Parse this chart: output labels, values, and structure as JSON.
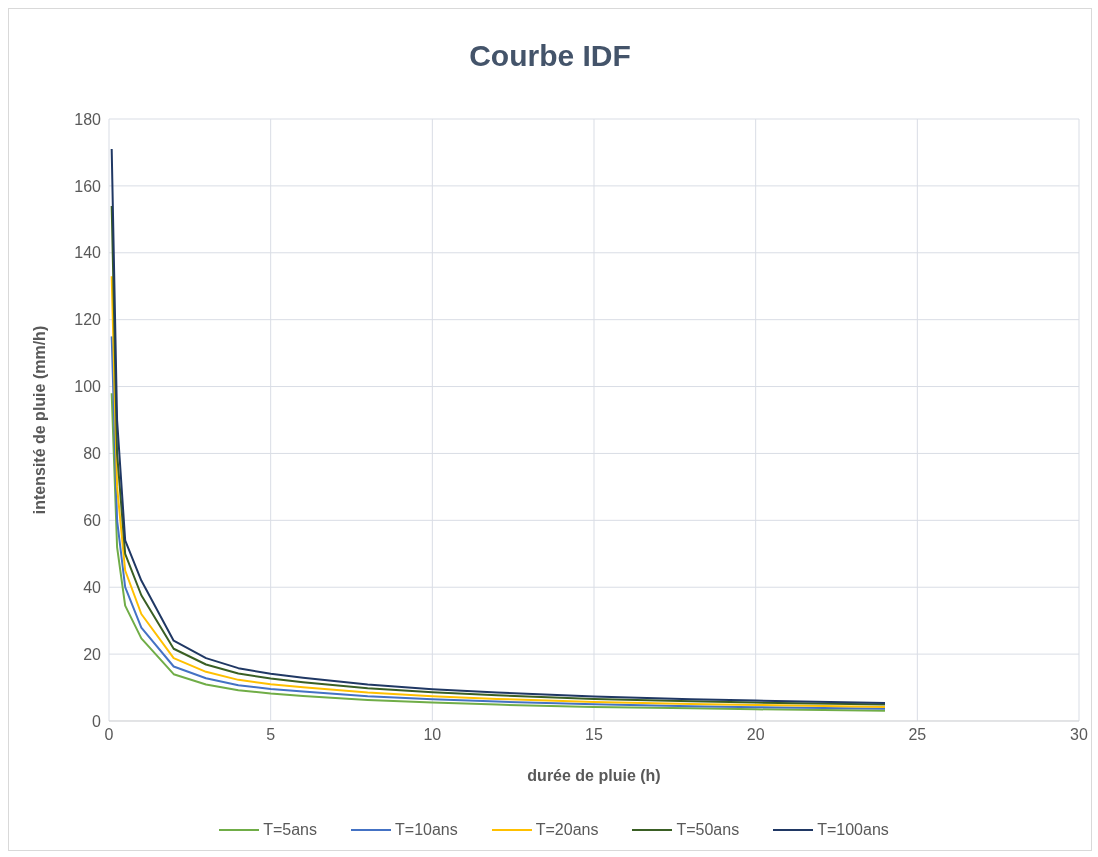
{
  "chart_data": {
    "type": "line",
    "title": "Courbe IDF",
    "xlabel": "durée de pluie (h)",
    "ylabel": "intensité de pluie (mm/h)",
    "x": [
      0.083,
      0.25,
      0.5,
      1,
      2,
      3,
      4,
      5,
      6,
      8,
      10,
      12,
      15,
      18,
      20,
      24
    ],
    "series": [
      {
        "name": "T=5ans",
        "color": "#70ad47",
        "values": [
          98,
          52,
          34.5,
          24.7,
          14,
          10.9,
          9.2,
          8.2,
          7.5,
          6.3,
          5.5,
          4.9,
          4.2,
          3.8,
          3.5,
          3.1
        ]
      },
      {
        "name": "T=10ans",
        "color": "#4472c4",
        "values": [
          115,
          60,
          40,
          27.9,
          16.3,
          12.8,
          10.7,
          9.6,
          8.8,
          7.4,
          6.5,
          5.8,
          5.0,
          4.4,
          4.1,
          3.7
        ]
      },
      {
        "name": "T=20ans",
        "color": "#ffc000",
        "values": [
          133,
          70,
          45,
          32,
          18.8,
          14.7,
          12.3,
          11.0,
          10.1,
          8.5,
          7.4,
          6.6,
          5.7,
          5.1,
          4.8,
          4.2
        ]
      },
      {
        "name": "T=50ans",
        "color": "#3a5f24",
        "values": [
          154,
          80,
          50,
          37.6,
          21.6,
          16.9,
          14.2,
          12.7,
          11.6,
          9.8,
          8.6,
          7.7,
          6.6,
          5.9,
          5.5,
          4.9
        ]
      },
      {
        "name": "T=100ans",
        "color": "#203864",
        "values": [
          171,
          90,
          54,
          42,
          24,
          18.8,
          15.8,
          14.1,
          12.9,
          10.9,
          9.5,
          8.5,
          7.3,
          6.5,
          6.1,
          5.4
        ]
      }
    ],
    "xlim": [
      0,
      30
    ],
    "xticks": [
      0,
      5,
      10,
      15,
      20,
      25,
      30
    ],
    "ylim": [
      0,
      180
    ],
    "yticks": [
      0,
      20,
      40,
      60,
      80,
      100,
      120,
      140,
      160,
      180
    ],
    "grid": true,
    "legend": "bottom",
    "marker": "none",
    "line_style": "solid"
  }
}
